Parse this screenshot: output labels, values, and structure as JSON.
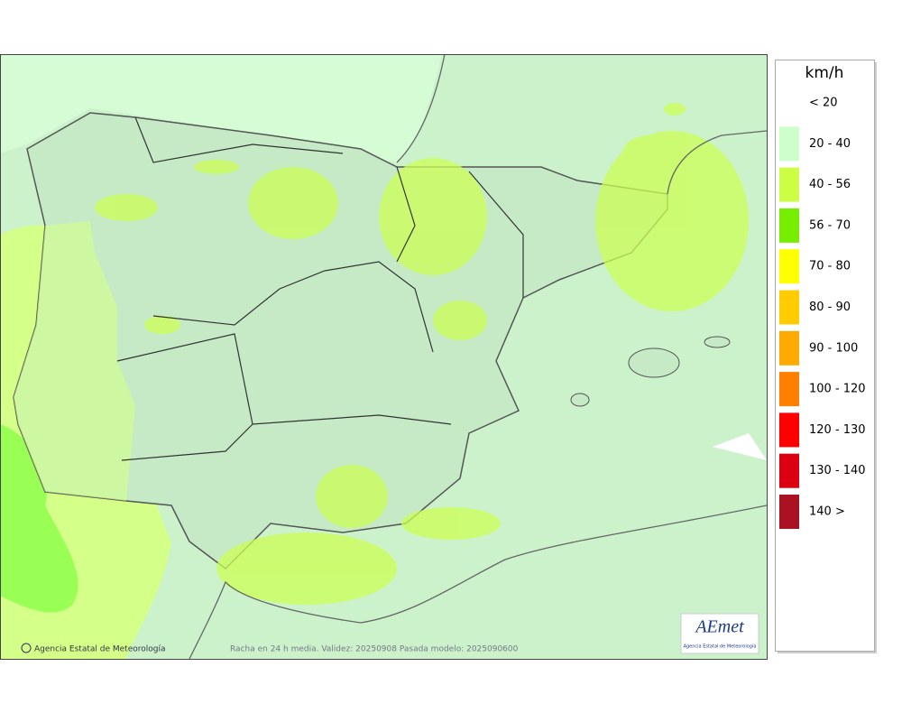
{
  "legend": {
    "title": "km/h",
    "items": [
      {
        "label": "< 20"
      },
      {
        "label": "20 - 40",
        "color": "#ccffcc"
      },
      {
        "label": "40 - 56",
        "color": "#ccff44"
      },
      {
        "label": "56 - 70",
        "color": "#77ee00"
      },
      {
        "label": "70 - 80",
        "color": "#ffff00"
      },
      {
        "label": "80 - 90",
        "color": "#ffcc00"
      },
      {
        "label": "90 - 100",
        "color": "#ffaa00"
      },
      {
        "label": "100 - 120",
        "color": "#ff8000"
      },
      {
        "label": "120 - 130",
        "color": "#ff0000"
      },
      {
        "label": "130 - 140",
        "color": "#dd0011"
      },
      {
        "label": "140 >",
        "color": "#aa1122"
      }
    ]
  },
  "footer": {
    "credit": "Agencia Estatal de Meteorología",
    "caption": "Racha en 24 h media. Validez: 20250908 Pasada modelo: 2025090600"
  },
  "logo": {
    "name": "AEmet",
    "subtitle": "Agencia Estatal de Meteorología"
  }
}
